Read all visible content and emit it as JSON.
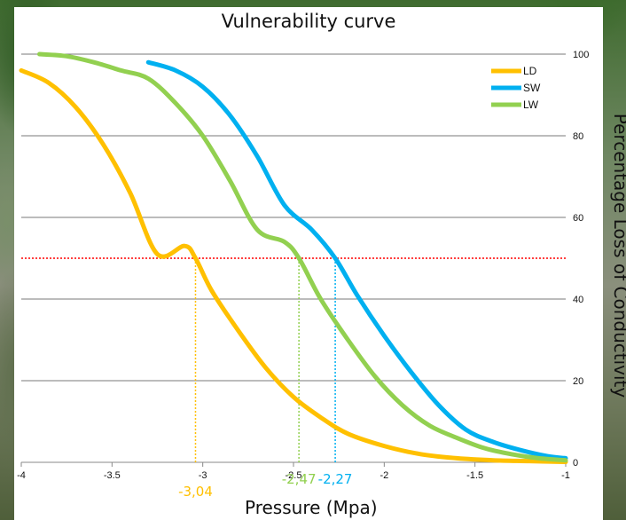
{
  "chart_data": {
    "type": "line",
    "title": "Vulnerability curve",
    "xlabel": "Pressure (Mpa)",
    "ylabel": "Percentage Loss of Conductivity",
    "xlim": [
      -4,
      -1
    ],
    "ylim": [
      0,
      100
    ],
    "x_ticks": [
      -4,
      -3.5,
      -3,
      -2.5,
      -2,
      -1.5,
      -1
    ],
    "x_tick_labels": [
      "-4",
      "-3.5",
      "-3",
      "-2.5",
      "-2",
      "-1.5",
      "-1"
    ],
    "y_ticks": [
      0,
      20,
      40,
      60,
      80,
      100
    ],
    "y_tick_labels": [
      "0",
      "20",
      "40",
      "60",
      "80",
      "100"
    ],
    "y_axis_side": "right",
    "grid": "horizontal",
    "legend_position": "top-right",
    "series": [
      {
        "name": "LD",
        "color": "#ffc000",
        "x": [
          -4.0,
          -3.85,
          -3.7,
          -3.55,
          -3.4,
          -3.25,
          -3.1,
          -3.04,
          -2.95,
          -2.8,
          -2.65,
          -2.5,
          -2.35,
          -2.2,
          -2.0,
          -1.8,
          -1.6,
          -1.4,
          -1.2,
          -1.0
        ],
        "y": [
          96,
          93,
          87,
          78,
          66,
          51,
          53,
          50,
          42,
          32,
          23,
          16,
          11,
          7,
          4,
          2,
          1,
          0.5,
          0.3,
          0.1
        ]
      },
      {
        "name": "SW",
        "color": "#00b0f0",
        "x": [
          -3.3,
          -3.15,
          -3.0,
          -2.85,
          -2.7,
          -2.55,
          -2.4,
          -2.27,
          -2.15,
          -2.0,
          -1.85,
          -1.7,
          -1.55,
          -1.4,
          -1.25,
          -1.1,
          -1.0
        ],
        "y": [
          98,
          96,
          92,
          85,
          75,
          63,
          57,
          50,
          41,
          31,
          22,
          14,
          8,
          5,
          3,
          1.5,
          1
        ]
      },
      {
        "name": "LW",
        "color": "#92d050",
        "x": [
          -3.9,
          -3.75,
          -3.6,
          -3.45,
          -3.3,
          -3.15,
          -3.0,
          -2.85,
          -2.7,
          -2.55,
          -2.47,
          -2.35,
          -2.2,
          -2.05,
          -1.9,
          -1.75,
          -1.6,
          -1.45,
          -1.3,
          -1.15,
          -1.0
        ],
        "y": [
          100,
          99.5,
          98,
          96,
          94,
          88,
          80,
          69,
          57,
          54,
          50,
          40,
          30,
          21,
          14,
          9,
          6,
          3.5,
          2,
          1,
          0.5
        ]
      }
    ],
    "reference_line": {
      "y": 50,
      "color": "#ff0000",
      "style": "dotted"
    },
    "annotations": [
      {
        "x": -3.04,
        "label": "-3,04",
        "color": "#ffc000"
      },
      {
        "x": -2.47,
        "label": "-2,47",
        "color": "#92d050"
      },
      {
        "x": -2.27,
        "label": "-2,27",
        "color": "#00b0f0"
      }
    ]
  }
}
